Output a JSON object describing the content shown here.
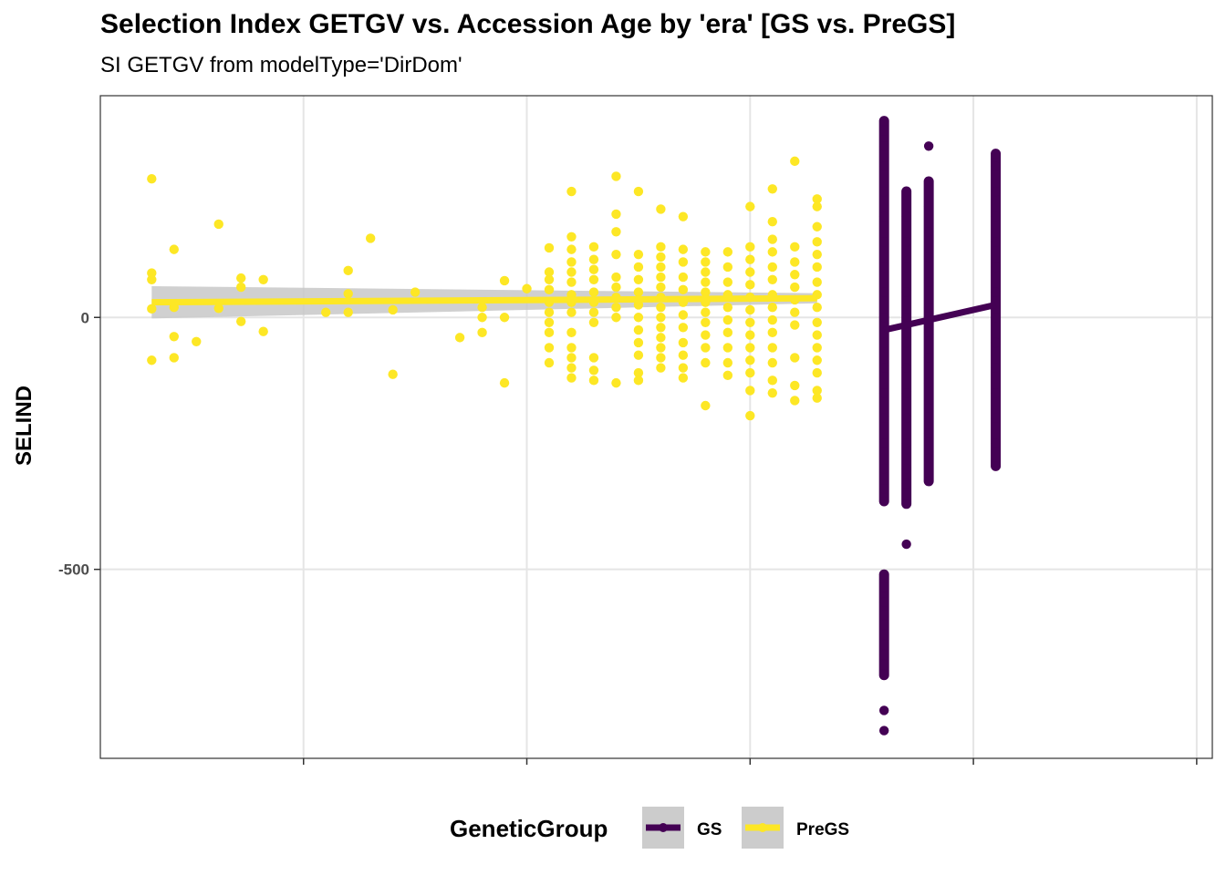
{
  "chart_data": {
    "type": "scatter",
    "title": "Selection Index GETGV vs. Accession Age by 'era' [GS vs. PreGS]",
    "subtitle": "SI GETGV from modelType='DirDom'",
    "xlabel": "",
    "ylabel": "SELIND",
    "xlim": [
      0.45,
      25.35
    ],
    "ylim": [
      -875,
      440
    ],
    "x_ticks": [
      5,
      10,
      15,
      20,
      25
    ],
    "x_tick_labels": [
      "",
      "",
      "",
      "",
      ""
    ],
    "y_ticks": [
      -500,
      0
    ],
    "y_tick_labels": [
      "-500",
      "0"
    ],
    "grid": true,
    "legend": {
      "position": "bottom",
      "title": "GeneticGroup",
      "entries": [
        {
          "label": "GS",
          "color": "#440154"
        },
        {
          "label": "PreGS",
          "color": "#FDE725"
        }
      ]
    },
    "colors": {
      "GS": "#440154",
      "PreGS": "#FDE725",
      "ribbon": "#c8c8c8",
      "grid": "#e5e5e5"
    },
    "series": [
      {
        "name": "PreGS",
        "color": "#FDE725",
        "points": [
          [
            1.6,
            275
          ],
          [
            1.6,
            88
          ],
          [
            1.6,
            75
          ],
          [
            1.6,
            17
          ],
          [
            1.6,
            -85
          ],
          [
            2.1,
            135
          ],
          [
            2.1,
            20
          ],
          [
            2.1,
            -38
          ],
          [
            2.1,
            -80
          ],
          [
            2.6,
            -48
          ],
          [
            3.1,
            185
          ],
          [
            3.1,
            18
          ],
          [
            3.6,
            78
          ],
          [
            3.6,
            60
          ],
          [
            3.6,
            -8
          ],
          [
            4.1,
            75
          ],
          [
            4.1,
            -28
          ],
          [
            5.5,
            10
          ],
          [
            6.0,
            93
          ],
          [
            6.0,
            47
          ],
          [
            6.0,
            10
          ],
          [
            6.5,
            157
          ],
          [
            7.0,
            15
          ],
          [
            7.0,
            -113
          ],
          [
            7.5,
            50
          ],
          [
            8.5,
            -40
          ],
          [
            9.0,
            20
          ],
          [
            9.0,
            0
          ],
          [
            9.0,
            -30
          ],
          [
            9.5,
            73
          ],
          [
            9.5,
            0
          ],
          [
            9.5,
            -130
          ],
          [
            10.0,
            57
          ],
          [
            10.5,
            138
          ],
          [
            10.5,
            90
          ],
          [
            10.5,
            75
          ],
          [
            10.5,
            55
          ],
          [
            10.5,
            30
          ],
          [
            10.5,
            10
          ],
          [
            10.5,
            -10
          ],
          [
            10.5,
            -30
          ],
          [
            10.5,
            -60
          ],
          [
            10.5,
            -90
          ],
          [
            11.0,
            250
          ],
          [
            11.0,
            160
          ],
          [
            11.0,
            135
          ],
          [
            11.0,
            110
          ],
          [
            11.0,
            90
          ],
          [
            11.0,
            70
          ],
          [
            11.0,
            45
          ],
          [
            11.0,
            30
          ],
          [
            11.0,
            10
          ],
          [
            11.0,
            -30
          ],
          [
            11.0,
            -60
          ],
          [
            11.0,
            -80
          ],
          [
            11.0,
            -100
          ],
          [
            11.0,
            -120
          ],
          [
            11.5,
            140
          ],
          [
            11.5,
            115
          ],
          [
            11.5,
            95
          ],
          [
            11.5,
            75
          ],
          [
            11.5,
            50
          ],
          [
            11.5,
            30
          ],
          [
            11.5,
            10
          ],
          [
            11.5,
            -10
          ],
          [
            11.5,
            -80
          ],
          [
            11.5,
            -105
          ],
          [
            11.5,
            -125
          ],
          [
            12.0,
            280
          ],
          [
            12.0,
            205
          ],
          [
            12.0,
            170
          ],
          [
            12.0,
            125
          ],
          [
            12.0,
            80
          ],
          [
            12.0,
            60
          ],
          [
            12.0,
            40
          ],
          [
            12.0,
            20
          ],
          [
            12.0,
            0
          ],
          [
            12.0,
            -130
          ],
          [
            12.5,
            250
          ],
          [
            12.5,
            125
          ],
          [
            12.5,
            100
          ],
          [
            12.5,
            75
          ],
          [
            12.5,
            50
          ],
          [
            12.5,
            25
          ],
          [
            12.5,
            0
          ],
          [
            12.5,
            -25
          ],
          [
            12.5,
            -50
          ],
          [
            12.5,
            -75
          ],
          [
            12.5,
            -110
          ],
          [
            12.5,
            -125
          ],
          [
            13.0,
            215
          ],
          [
            13.0,
            140
          ],
          [
            13.0,
            120
          ],
          [
            13.0,
            100
          ],
          [
            13.0,
            80
          ],
          [
            13.0,
            60
          ],
          [
            13.0,
            40
          ],
          [
            13.0,
            20
          ],
          [
            13.0,
            0
          ],
          [
            13.0,
            -20
          ],
          [
            13.0,
            -40
          ],
          [
            13.0,
            -60
          ],
          [
            13.0,
            -80
          ],
          [
            13.0,
            -100
          ],
          [
            13.5,
            200
          ],
          [
            13.5,
            135
          ],
          [
            13.5,
            110
          ],
          [
            13.5,
            80
          ],
          [
            13.5,
            55
          ],
          [
            13.5,
            30
          ],
          [
            13.5,
            5
          ],
          [
            13.5,
            -20
          ],
          [
            13.5,
            -50
          ],
          [
            13.5,
            -75
          ],
          [
            13.5,
            -100
          ],
          [
            13.5,
            -120
          ],
          [
            14.0,
            130
          ],
          [
            14.0,
            110
          ],
          [
            14.0,
            90
          ],
          [
            14.0,
            70
          ],
          [
            14.0,
            50
          ],
          [
            14.0,
            30
          ],
          [
            14.0,
            10
          ],
          [
            14.0,
            -10
          ],
          [
            14.0,
            -35
          ],
          [
            14.0,
            -60
          ],
          [
            14.0,
            -90
          ],
          [
            14.0,
            -175
          ],
          [
            14.5,
            130
          ],
          [
            14.5,
            100
          ],
          [
            14.5,
            70
          ],
          [
            14.5,
            45
          ],
          [
            14.5,
            20
          ],
          [
            14.5,
            -5
          ],
          [
            14.5,
            -30
          ],
          [
            14.5,
            -60
          ],
          [
            14.5,
            -90
          ],
          [
            14.5,
            -115
          ],
          [
            15.0,
            220
          ],
          [
            15.0,
            140
          ],
          [
            15.0,
            115
          ],
          [
            15.0,
            90
          ],
          [
            15.0,
            65
          ],
          [
            15.0,
            40
          ],
          [
            15.0,
            15
          ],
          [
            15.0,
            -10
          ],
          [
            15.0,
            -35
          ],
          [
            15.0,
            -60
          ],
          [
            15.0,
            -85
          ],
          [
            15.0,
            -110
          ],
          [
            15.0,
            -145
          ],
          [
            15.0,
            -195
          ],
          [
            15.5,
            255
          ],
          [
            15.5,
            190
          ],
          [
            15.5,
            155
          ],
          [
            15.5,
            130
          ],
          [
            15.5,
            100
          ],
          [
            15.5,
            75
          ],
          [
            15.5,
            45
          ],
          [
            15.5,
            20
          ],
          [
            15.5,
            -5
          ],
          [
            15.5,
            -30
          ],
          [
            15.5,
            -60
          ],
          [
            15.5,
            -90
          ],
          [
            15.5,
            -125
          ],
          [
            15.5,
            -150
          ],
          [
            16.0,
            310
          ],
          [
            16.0,
            140
          ],
          [
            16.0,
            110
          ],
          [
            16.0,
            85
          ],
          [
            16.0,
            60
          ],
          [
            16.0,
            35
          ],
          [
            16.0,
            10
          ],
          [
            16.0,
            -15
          ],
          [
            16.0,
            -80
          ],
          [
            16.0,
            -135
          ],
          [
            16.0,
            -165
          ],
          [
            16.5,
            235
          ],
          [
            16.5,
            220
          ],
          [
            16.5,
            180
          ],
          [
            16.5,
            150
          ],
          [
            16.5,
            125
          ],
          [
            16.5,
            100
          ],
          [
            16.5,
            70
          ],
          [
            16.5,
            45
          ],
          [
            16.5,
            20
          ],
          [
            16.5,
            -10
          ],
          [
            16.5,
            -35
          ],
          [
            16.5,
            -60
          ],
          [
            16.5,
            -85
          ],
          [
            16.5,
            -110
          ],
          [
            16.5,
            -145
          ],
          [
            16.5,
            -160
          ]
        ]
      },
      {
        "name": "GS",
        "color": "#440154",
        "points": [
          [
            18.0,
            390
          ],
          [
            18.0,
            370
          ],
          [
            18.0,
            340
          ],
          [
            18.0,
            300
          ],
          [
            18.0,
            250
          ],
          [
            18.0,
            200
          ],
          [
            18.0,
            150
          ],
          [
            18.0,
            100
          ],
          [
            18.0,
            50
          ],
          [
            18.0,
            0
          ],
          [
            18.0,
            -50
          ],
          [
            18.0,
            -100
          ],
          [
            18.0,
            -150
          ],
          [
            18.0,
            -200
          ],
          [
            18.0,
            -250
          ],
          [
            18.0,
            -300
          ],
          [
            18.0,
            -340
          ],
          [
            18.0,
            -365
          ],
          [
            18.0,
            -510
          ],
          [
            18.0,
            -535
          ],
          [
            18.0,
            -565
          ],
          [
            18.0,
            -590
          ],
          [
            18.0,
            -610
          ],
          [
            18.0,
            -630
          ],
          [
            18.0,
            -650
          ],
          [
            18.0,
            -670
          ],
          [
            18.0,
            -690
          ],
          [
            18.0,
            -710
          ],
          [
            18.0,
            -780
          ],
          [
            18.0,
            -820
          ],
          [
            18.5,
            250
          ],
          [
            18.5,
            200
          ],
          [
            18.5,
            150
          ],
          [
            18.5,
            100
          ],
          [
            18.5,
            50
          ],
          [
            18.5,
            0
          ],
          [
            18.5,
            -50
          ],
          [
            18.5,
            -100
          ],
          [
            18.5,
            -150
          ],
          [
            18.5,
            -200
          ],
          [
            18.5,
            -250
          ],
          [
            18.5,
            -300
          ],
          [
            18.5,
            -330
          ],
          [
            18.5,
            -370
          ],
          [
            18.5,
            -450
          ],
          [
            19.0,
            340
          ],
          [
            19.0,
            270
          ],
          [
            19.0,
            220
          ],
          [
            19.0,
            170
          ],
          [
            19.0,
            120
          ],
          [
            19.0,
            70
          ],
          [
            19.0,
            20
          ],
          [
            19.0,
            -30
          ],
          [
            19.0,
            -80
          ],
          [
            19.0,
            -130
          ],
          [
            19.0,
            -180
          ],
          [
            19.0,
            -230
          ],
          [
            19.0,
            -280
          ],
          [
            19.0,
            -325
          ],
          [
            20.5,
            325
          ],
          [
            20.5,
            300
          ],
          [
            20.5,
            250
          ],
          [
            20.5,
            200
          ],
          [
            20.5,
            150
          ],
          [
            20.5,
            100
          ],
          [
            20.5,
            50
          ],
          [
            20.5,
            0
          ],
          [
            20.5,
            -50
          ],
          [
            20.5,
            -100
          ],
          [
            20.5,
            -150
          ],
          [
            20.5,
            -200
          ],
          [
            20.5,
            -250
          ],
          [
            20.5,
            -295
          ]
        ],
        "columns": [
          {
            "x": 18.0,
            "range": [
              -365,
              390
            ]
          },
          {
            "x": 18.0,
            "range": [
              -710,
              -510
            ]
          },
          {
            "x": 18.5,
            "range": [
              -370,
              250
            ]
          },
          {
            "x": 19.0,
            "range": [
              -325,
              270
            ]
          },
          {
            "x": 20.5,
            "range": [
              -295,
              325
            ]
          }
        ]
      }
    ],
    "trend_lines": [
      {
        "series": "PreGS",
        "x": [
          1.6,
          16.5
        ],
        "y": [
          30,
          38
        ],
        "ci_lower": [
          -2,
          28
        ],
        "ci_upper": [
          62,
          48
        ]
      },
      {
        "series": "GS",
        "x": [
          18.0,
          20.5
        ],
        "y": [
          -25,
          25
        ]
      }
    ]
  }
}
